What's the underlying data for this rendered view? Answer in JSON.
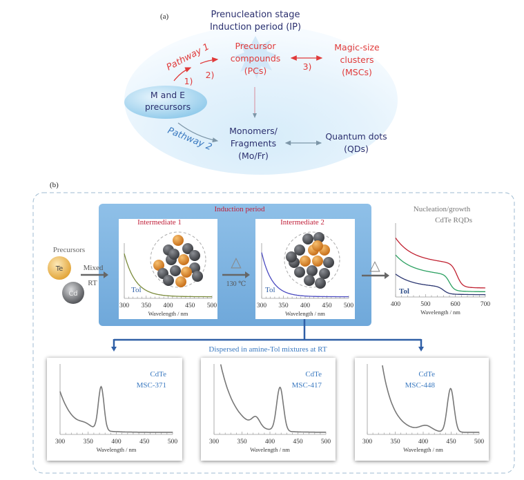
{
  "colors": {
    "navy_text": "#2b2f6e",
    "red_text": "#e03a3a",
    "blue_text": "#3a79c0",
    "induction_band": "#7fb4e0",
    "dark_red_text": "#c0203a",
    "te_ball": "#f0b84a",
    "cd_ball": "#6b6d72",
    "atom_orange": "#e08a2a",
    "atom_grey": "#55585e"
  },
  "panel_a": {
    "label": "(a)",
    "title_line1": "Prenucleation stage",
    "title_line2": "Induction period (IP)",
    "pathway1": "Pathway 1",
    "pathway2": "Pathway 2",
    "step1": "1)",
    "step2": "2)",
    "step3": "3)",
    "pcs": [
      "Precursor",
      "compounds",
      "(PCs)"
    ],
    "mscs": [
      "Magic-size",
      "clusters",
      "(MSCs)"
    ],
    "precursors": [
      "M and E",
      "precursors"
    ],
    "monomers": [
      "Monomers/",
      "Fragments",
      "(Mo/Fr)"
    ],
    "qds": [
      "Quantum dots",
      "(QDs)"
    ]
  },
  "panel_b": {
    "label": "(b)",
    "precursors": "Precursors",
    "te": "Te",
    "cd": "Cd",
    "mixed": "Mixed",
    "rt": "RT",
    "induction": "Induction period",
    "delta": "△",
    "temp": "130 ℃",
    "intermediate1": {
      "title": "Intermediate 1",
      "solvent": "Tol",
      "ticks": [
        "300",
        "350",
        "400",
        "450",
        "500"
      ],
      "xlabel": "Wavelength / nm"
    },
    "intermediate2": {
      "title": "Intermediate 2",
      "solvent": "Tol",
      "ticks": [
        "300",
        "350",
        "400",
        "450",
        "500"
      ],
      "xlabel": "Wavelength / nm"
    },
    "rqd": {
      "title1": "Nucleation/growth",
      "title2": "CdTe RQDs",
      "solvent": "Tol",
      "ticks": [
        "400",
        "500",
        "600",
        "700"
      ],
      "xlabel": "Wavelength / nm"
    },
    "dispersed": "Dispersed in amine-Tol mixtures at RT",
    "msc": [
      {
        "material": "CdTe",
        "name": "MSC-371",
        "ticks": [
          "300",
          "350",
          "400",
          "450",
          "500"
        ],
        "xlabel": "Wavelength / nm"
      },
      {
        "material": "CdTe",
        "name": "MSC-417",
        "ticks": [
          "300",
          "350",
          "400",
          "450",
          "500"
        ],
        "xlabel": "Wavelength / nm"
      },
      {
        "material": "CdTe",
        "name": "MSC-448",
        "ticks": [
          "300",
          "350",
          "400",
          "450",
          "500"
        ],
        "xlabel": "Wavelength / nm"
      }
    ]
  }
}
